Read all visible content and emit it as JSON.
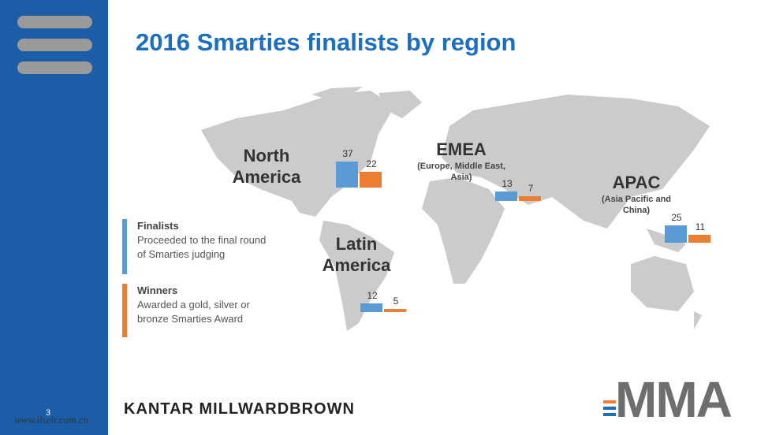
{
  "title": "2016 Smarties finalists by region",
  "legend": [
    {
      "label": "Finalists",
      "description": "Proceeded to the final round of Smarties judging",
      "color": "#5b9bd5"
    },
    {
      "label": "Winners",
      "description": "Awarded a gold, silver or bronze Smarties Award",
      "color": "#ed7d31"
    }
  ],
  "regions": [
    {
      "name": "North America",
      "values": [
        37,
        22
      ]
    },
    {
      "name": "EMEA",
      "subtitle": "(Europe, Middle East, Asia)",
      "values": [
        13,
        7
      ]
    },
    {
      "name": "Latin America",
      "values": [
        12,
        5
      ]
    },
    {
      "name": "APAC",
      "subtitle": "(Asia Pacific and China)",
      "values": [
        25,
        11
      ]
    }
  ],
  "footer": {
    "page": "3",
    "watermark": "www.ilseit.com.cn",
    "logo_left": "KANTAR MILLWARDBROWN",
    "logo_right": "MMA"
  }
}
